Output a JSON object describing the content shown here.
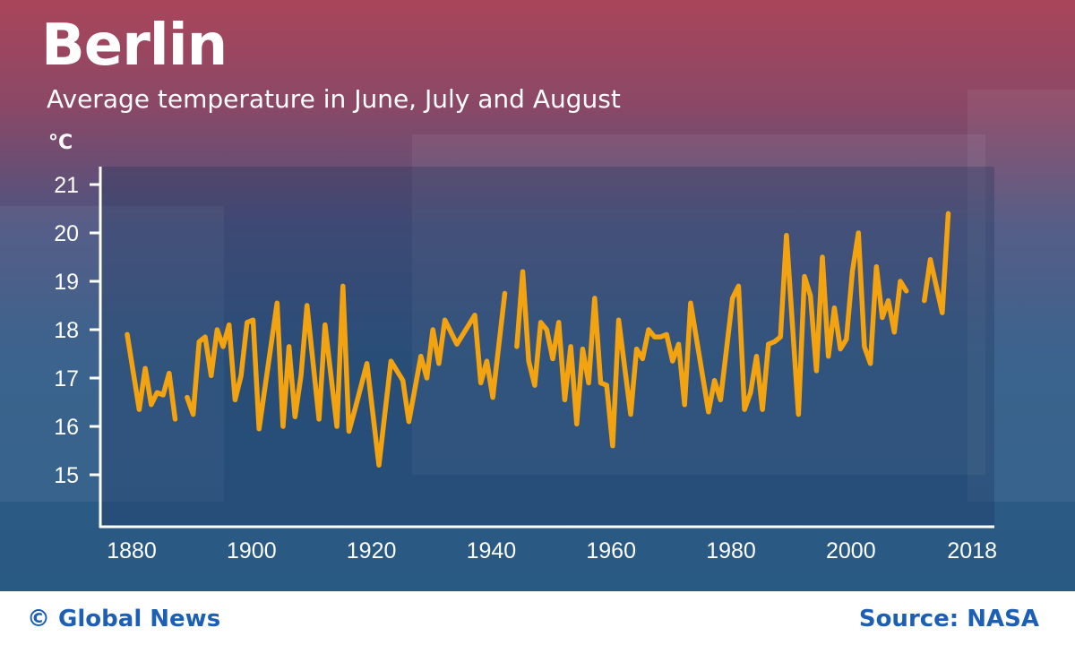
{
  "header": {
    "title": "Berlin",
    "subtitle": "Average temperature in June, July and August",
    "unit": "°C"
  },
  "footer": {
    "credit": "© Global News",
    "source": "Source: NASA"
  },
  "colors": {
    "line": "#f2a30f",
    "background_top": "#a9455a",
    "background_bottom": "#295a84",
    "footer_text": "#1c5fb5"
  },
  "chart_data": {
    "type": "line",
    "title": "Average temperature in June, July and August",
    "ylabel": "°C",
    "xlabel": "",
    "xlim": [
      1880,
      2018
    ],
    "ylim": [
      14,
      21.4
    ],
    "grid": false,
    "x_ticks": [
      "1880",
      "1900",
      "1920",
      "1940",
      "1960",
      "1980",
      "2000",
      "2018"
    ],
    "y_ticks": [
      "15",
      "16",
      "17",
      "18",
      "19",
      "20",
      "21"
    ],
    "series": [
      {
        "points": [
          [
            1880,
            17.9
          ],
          [
            1882,
            16.35
          ],
          [
            1883,
            17.2
          ],
          [
            1884,
            16.45
          ],
          [
            1885,
            16.7
          ],
          [
            1886,
            16.65
          ],
          [
            1887,
            17.1
          ],
          [
            1888,
            16.15
          ],
          null,
          [
            1890,
            16.6
          ],
          [
            1891,
            16.25
          ],
          [
            1892,
            17.75
          ],
          [
            1893,
            17.85
          ],
          [
            1894,
            17.05
          ],
          [
            1895,
            18.0
          ],
          [
            1896,
            17.65
          ],
          [
            1897,
            18.1
          ],
          [
            1898,
            16.55
          ],
          [
            1899,
            17.05
          ],
          [
            1900,
            18.15
          ],
          [
            1901,
            18.2
          ],
          [
            1902,
            15.95
          ],
          [
            1905,
            18.55
          ],
          [
            1906,
            16.0
          ],
          [
            1907,
            17.65
          ],
          [
            1908,
            16.2
          ],
          [
            1909,
            17.05
          ],
          [
            1910,
            18.5
          ],
          [
            1912,
            16.15
          ],
          [
            1913,
            18.1
          ],
          [
            1915,
            16.0
          ],
          [
            1916,
            18.9
          ],
          [
            1917,
            15.9
          ],
          [
            1918,
            16.35
          ],
          [
            1920,
            17.3
          ],
          [
            1922,
            15.2
          ],
          [
            1924,
            17.35
          ],
          [
            1926,
            16.95
          ],
          [
            1927,
            16.1
          ],
          [
            1929,
            17.45
          ],
          [
            1930,
            17.0
          ],
          [
            1931,
            18.0
          ],
          [
            1932,
            17.3
          ],
          [
            1933,
            18.2
          ],
          [
            1935,
            17.7
          ],
          [
            1938,
            18.3
          ],
          [
            1939,
            16.9
          ],
          [
            1940,
            17.35
          ],
          [
            1941,
            16.6
          ],
          [
            1943,
            18.75
          ],
          null,
          [
            1945,
            17.65
          ],
          [
            1946,
            19.2
          ],
          [
            1947,
            17.35
          ],
          [
            1948,
            16.85
          ],
          [
            1949,
            18.15
          ],
          [
            1950,
            18.0
          ],
          [
            1951,
            17.4
          ],
          [
            1952,
            18.15
          ],
          [
            1953,
            16.55
          ],
          [
            1954,
            17.65
          ],
          [
            1955,
            16.05
          ],
          [
            1956,
            17.6
          ],
          [
            1957,
            16.9
          ],
          [
            1958,
            18.65
          ],
          [
            1959,
            16.9
          ],
          [
            1960,
            16.85
          ],
          [
            1961,
            15.6
          ],
          [
            1962,
            18.2
          ],
          [
            1964,
            16.25
          ],
          [
            1965,
            17.6
          ],
          [
            1966,
            17.4
          ],
          [
            1967,
            18.0
          ],
          [
            1968,
            17.85
          ],
          [
            1969,
            17.85
          ],
          [
            1970,
            17.9
          ],
          [
            1971,
            17.35
          ],
          [
            1972,
            17.7
          ],
          [
            1973,
            16.45
          ],
          [
            1974,
            18.55
          ],
          [
            1977,
            16.3
          ],
          [
            1978,
            16.95
          ],
          [
            1979,
            16.55
          ],
          [
            1981,
            18.65
          ],
          [
            1982,
            18.9
          ],
          [
            1983,
            16.35
          ],
          [
            1984,
            16.7
          ],
          [
            1985,
            17.45
          ],
          [
            1986,
            16.35
          ],
          [
            1987,
            17.7
          ],
          [
            1988,
            17.75
          ],
          [
            1989,
            17.85
          ],
          [
            1990,
            19.95
          ],
          [
            1992,
            16.25
          ],
          [
            1993,
            19.1
          ],
          [
            1994,
            18.7
          ],
          [
            1995,
            17.15
          ],
          [
            1996,
            19.5
          ],
          [
            1997,
            17.45
          ],
          [
            1998,
            18.45
          ],
          [
            1999,
            17.6
          ],
          [
            2000,
            17.8
          ],
          [
            2001,
            19.2
          ],
          [
            2002,
            20.0
          ],
          [
            2003,
            17.65
          ],
          [
            2004,
            17.3
          ],
          [
            2005,
            19.3
          ],
          [
            2006,
            18.25
          ],
          [
            2007,
            18.6
          ],
          [
            2008,
            17.95
          ],
          [
            2009,
            19.0
          ],
          [
            2010,
            18.8
          ],
          null,
          [
            2013,
            18.6
          ],
          [
            2014,
            19.45
          ],
          [
            2016,
            18.35
          ],
          [
            2017,
            20.4
          ]
        ]
      }
    ]
  }
}
